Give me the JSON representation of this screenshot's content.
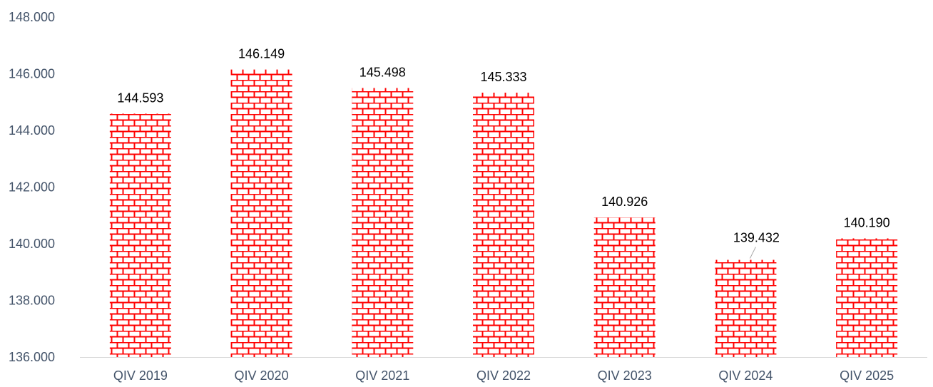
{
  "chart_data": {
    "type": "bar",
    "title": "",
    "xlabel": "",
    "ylabel": "",
    "categories": [
      "QIV 2019",
      "QIV 2020",
      "QIV 2021",
      "QIV 2022",
      "QIV 2023",
      "QIV 2024",
      "QIV 2025"
    ],
    "values": [
      144593,
      146149,
      145498,
      145333,
      140926,
      139432,
      140190
    ],
    "data_labels": [
      "144.593",
      "146.149",
      "145.498",
      "145.333",
      "140.926",
      "139.432",
      "140.190"
    ],
    "ylim": [
      136000,
      148000
    ],
    "yticks": [
      136000,
      138000,
      140000,
      142000,
      144000,
      146000,
      148000
    ],
    "ytick_labels": [
      "136.000",
      "138.000",
      "140.000",
      "142.000",
      "144.000",
      "146.000",
      "148.000"
    ],
    "grid": false,
    "legend": "none",
    "bar_pattern": "brick",
    "colors": {
      "bar_fill": "#ffffff",
      "bar_pattern": "#ff0000",
      "axis": "#d9d9d9",
      "tick_text": "#44546a",
      "label_text": "#000000",
      "leader_line": "#a6a6a6"
    }
  }
}
